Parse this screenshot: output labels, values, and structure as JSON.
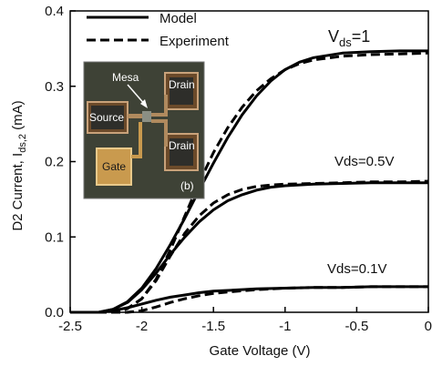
{
  "chart_data": {
    "type": "line",
    "xlabel": "Gate Voltage (V)",
    "ylabel": "D2 Current, I",
    "ylabel_subscript": "ds,2",
    "ylabel_unit": " (mA)",
    "xlim": [
      -2.5,
      0
    ],
    "ylim": [
      0,
      0.4
    ],
    "xticks": [
      -2.5,
      -2,
      -1.5,
      -1,
      -0.5,
      0
    ],
    "xtick_labels": [
      "-2.5",
      "-2",
      "-1.5",
      "-1",
      "-0.5",
      "0"
    ],
    "yticks": [
      0,
      0.1,
      0.2,
      0.3,
      0.4
    ],
    "ytick_labels": [
      "0.0",
      "0.1",
      "0.2",
      "0.3",
      "0.4"
    ],
    "grid": false,
    "legend": {
      "placement": "top-left",
      "entries": [
        {
          "label": "Model",
          "style": "solid"
        },
        {
          "label": "Experiment",
          "style": "dashed"
        }
      ]
    },
    "series": [
      {
        "group": "Vds=1",
        "style": "solid",
        "x": [
          -2.5,
          -2.3,
          -2.2,
          -2.1,
          -2.0,
          -1.9,
          -1.8,
          -1.7,
          -1.6,
          -1.5,
          -1.4,
          -1.3,
          -1.2,
          -1.1,
          -1.0,
          -0.9,
          -0.8,
          -0.6,
          -0.4,
          -0.2,
          0
        ],
        "y": [
          0,
          0,
          0.004,
          0.014,
          0.032,
          0.058,
          0.09,
          0.125,
          0.162,
          0.198,
          0.232,
          0.262,
          0.287,
          0.307,
          0.322,
          0.332,
          0.338,
          0.344,
          0.346,
          0.347,
          0.347
        ]
      },
      {
        "group": "Vds=1",
        "style": "dashed",
        "x": [
          -2.5,
          -2.2,
          -2.1,
          -2.0,
          -1.9,
          -1.8,
          -1.7,
          -1.6,
          -1.5,
          -1.4,
          -1.3,
          -1.2,
          -1.1,
          -1.0,
          -0.9,
          -0.8,
          -0.6,
          -0.4,
          -0.2,
          0
        ],
        "y": [
          0,
          0,
          0.005,
          0.018,
          0.044,
          0.083,
          0.128,
          0.172,
          0.212,
          0.245,
          0.272,
          0.294,
          0.31,
          0.322,
          0.33,
          0.335,
          0.34,
          0.342,
          0.343,
          0.344
        ]
      },
      {
        "group": "Vds=0.5V",
        "style": "solid",
        "x": [
          -2.5,
          -2.3,
          -2.2,
          -2.1,
          -2.0,
          -1.9,
          -1.8,
          -1.7,
          -1.6,
          -1.5,
          -1.4,
          -1.3,
          -1.2,
          -1.1,
          -1.0,
          -0.8,
          -0.6,
          -0.4,
          -0.2,
          0
        ],
        "y": [
          0,
          0,
          0.004,
          0.013,
          0.03,
          0.052,
          0.077,
          0.1,
          0.12,
          0.136,
          0.148,
          0.156,
          0.162,
          0.166,
          0.168,
          0.17,
          0.171,
          0.172,
          0.172,
          0.172
        ]
      },
      {
        "group": "Vds=0.5V",
        "style": "dashed",
        "x": [
          -2.5,
          -2.2,
          -2.1,
          -2.0,
          -1.9,
          -1.8,
          -1.7,
          -1.6,
          -1.5,
          -1.4,
          -1.3,
          -1.2,
          -1.1,
          -1.0,
          -0.8,
          -0.6,
          -0.4,
          -0.2,
          0
        ],
        "y": [
          0,
          0,
          0.005,
          0.018,
          0.042,
          0.075,
          0.105,
          0.128,
          0.145,
          0.156,
          0.163,
          0.167,
          0.169,
          0.17,
          0.171,
          0.172,
          0.173,
          0.173,
          0.174
        ]
      },
      {
        "group": "Vds=0.1V",
        "style": "solid",
        "x": [
          -2.5,
          -2.3,
          -2.2,
          -2.1,
          -2.0,
          -1.9,
          -1.8,
          -1.7,
          -1.6,
          -1.5,
          -1.4,
          -1.2,
          -1.0,
          -0.8,
          -0.6,
          -0.4,
          -0.2,
          0
        ],
        "y": [
          0,
          0,
          0.002,
          0.006,
          0.011,
          0.016,
          0.02,
          0.023,
          0.026,
          0.028,
          0.029,
          0.031,
          0.032,
          0.033,
          0.033,
          0.034,
          0.034,
          0.034
        ]
      },
      {
        "group": "Vds=0.1V",
        "style": "dashed",
        "x": [
          -2.5,
          -2.1,
          -2.0,
          -1.9,
          -1.8,
          -1.7,
          -1.6,
          -1.5,
          -1.4,
          -1.2,
          -1.0,
          -0.8,
          -0.6,
          -0.4,
          -0.2,
          0
        ],
        "y": [
          0,
          0,
          0.002,
          0.007,
          0.013,
          0.018,
          0.022,
          0.025,
          0.027,
          0.03,
          0.032,
          0.033,
          0.033,
          0.034,
          0.034,
          0.034
        ]
      }
    ],
    "annotations": [
      {
        "text": "V",
        "subscript": "ds",
        "suffix": "=1"
      },
      {
        "text": "Vds=0.5V"
      },
      {
        "text": "Vds=0.1V"
      }
    ],
    "inset": {
      "labels": [
        "Mesa",
        "Drain",
        "Source",
        "Drain",
        "Gate",
        "(b)"
      ]
    }
  }
}
